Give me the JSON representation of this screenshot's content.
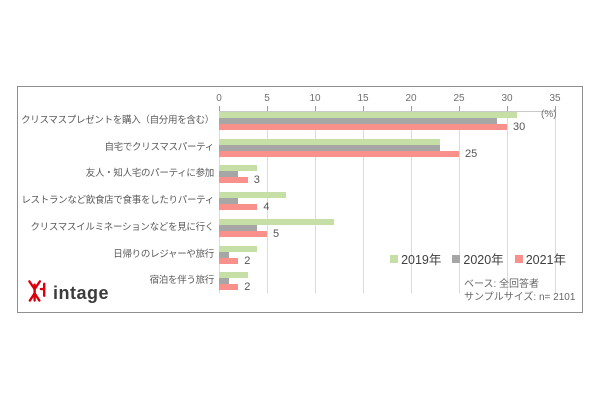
{
  "chart_data": {
    "type": "bar",
    "orientation": "horizontal",
    "title": "",
    "unit_label": "(%)",
    "xlim": [
      0,
      35
    ],
    "x_ticks": [
      0,
      5,
      10,
      15,
      20,
      25,
      30,
      35
    ],
    "grid": true,
    "legend_position": "right-middle",
    "categories": [
      "クリスマスプレゼントを購入（自分用を含む）",
      "自宅でクリスマスパーティ",
      "友人・知人宅のパーティに参加",
      "レストランなど飲食店で食事をしたりパーティ",
      "クリスマスイルミネーションなどを見に行く",
      "日帰りのレジャーや旅行",
      "宿泊を伴う旅行"
    ],
    "series": [
      {
        "name": "2019年",
        "color": "#c6dfa6",
        "values": [
          31,
          23,
          4,
          7,
          12,
          4,
          3
        ]
      },
      {
        "name": "2020年",
        "color": "#a6a6a6",
        "values": [
          29,
          23,
          2,
          2,
          4,
          1,
          1
        ]
      },
      {
        "name": "2021年",
        "color": "#f8908c",
        "values": [
          30,
          25,
          3,
          4,
          5,
          2,
          2
        ]
      }
    ],
    "data_labels": {
      "labeled_series": "2021年",
      "values": [
        30,
        25,
        3,
        4,
        5,
        2,
        2
      ]
    }
  },
  "footnote": {
    "line1": "ベース: 全回答者",
    "line2": "サンプルサイズ: n= 2101"
  },
  "logo": {
    "text": "intage",
    "mark_color": "#d9000d"
  },
  "colors": {
    "frame_border": "#8f8f8f",
    "gridline": "#dcdcdc",
    "tick_text": "#707070",
    "category_text": "#595959",
    "value_label_text": "#555555",
    "footnote_text": "#666666"
  }
}
